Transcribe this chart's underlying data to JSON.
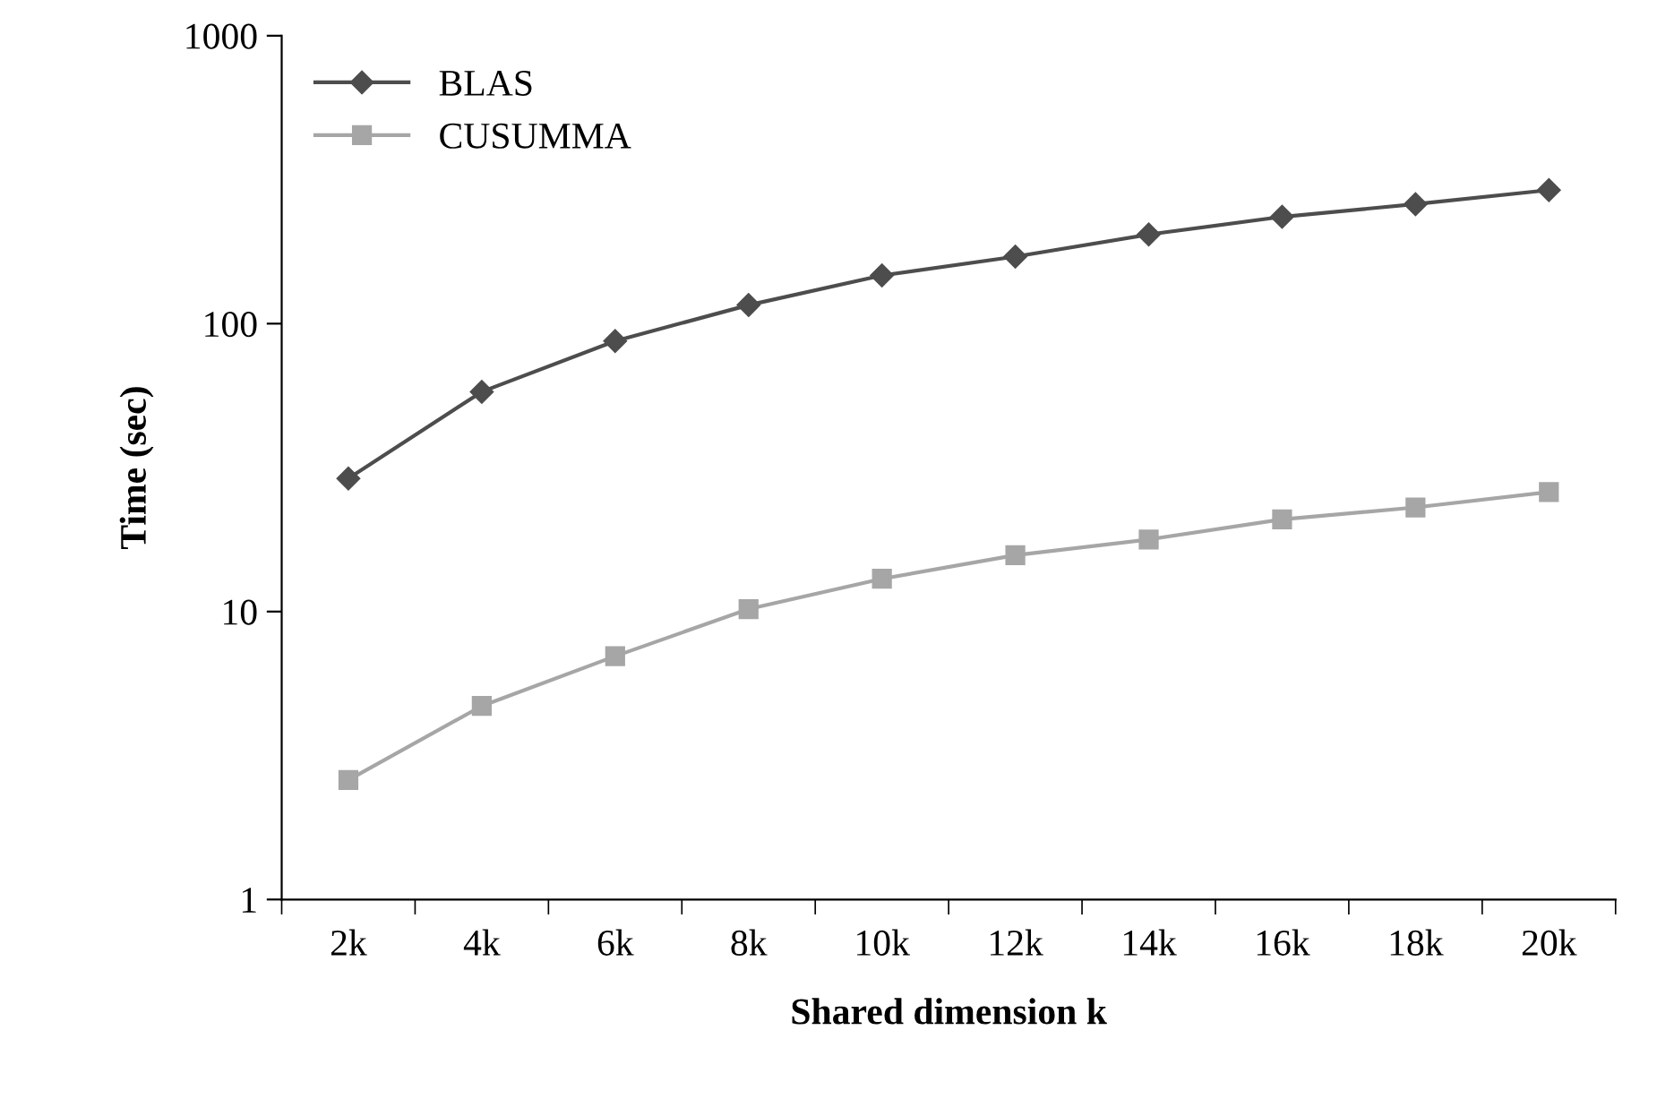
{
  "chart_data": {
    "type": "line",
    "xlabel": "Shared dimension k",
    "ylabel": "Time (sec)",
    "categories": [
      "2k",
      "4k",
      "6k",
      "8k",
      "10k",
      "12k",
      "14k",
      "16k",
      "18k",
      "20k"
    ],
    "series": [
      {
        "name": "BLAS",
        "color": "#4d4d4d",
        "marker": "diamond",
        "values": [
          29,
          58,
          87,
          116,
          147,
          171,
          204,
          235,
          260,
          291
        ]
      },
      {
        "name": "CUSUMMA",
        "color": "#a6a6a6",
        "marker": "square",
        "values": [
          2.6,
          4.7,
          7.0,
          10.2,
          13,
          15.7,
          17.8,
          20.9,
          23,
          26
        ]
      }
    ],
    "log": "y",
    "ylim": [
      1,
      1000
    ],
    "yticks": [
      1,
      10,
      100,
      1000
    ],
    "grid": false,
    "legend": "top left",
    "line_style": "solid"
  }
}
